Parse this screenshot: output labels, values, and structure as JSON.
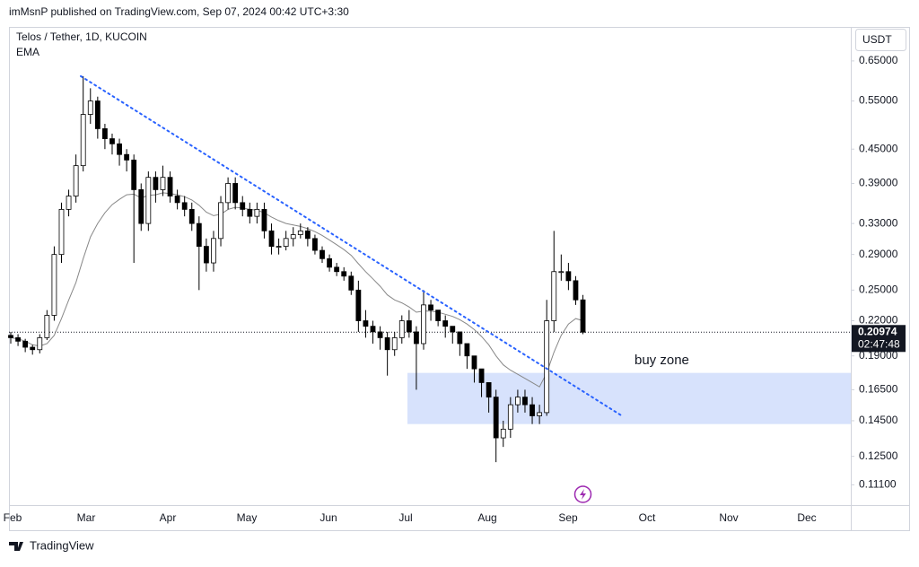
{
  "header": "imMsnP published on TradingView.com, Sep 07, 2024 00:42 UTC+3:30",
  "footer": "TradingView",
  "chart_data": {
    "type": "candlestick",
    "title": "Telos / Tether, 1D, KUCOIN",
    "currency": "USDT",
    "log_scale": true,
    "colors": {
      "up": "#ffffff",
      "down": "#000000",
      "wick": "#000000"
    },
    "open": [
      0.207,
      0.205,
      0.202,
      0.197,
      0.195,
      0.205,
      0.225,
      0.29,
      0.35,
      0.37,
      0.42,
      0.52,
      0.55,
      0.49,
      0.47,
      0.46,
      0.44,
      0.43,
      0.38,
      0.33,
      0.4,
      0.38,
      0.4,
      0.37,
      0.36,
      0.35,
      0.33,
      0.3,
      0.28,
      0.31,
      0.36,
      0.39,
      0.36,
      0.35,
      0.34,
      0.35,
      0.32,
      0.3,
      0.3,
      0.31,
      0.315,
      0.32,
      0.31,
      0.295,
      0.285,
      0.275,
      0.27,
      0.265,
      0.25,
      0.22,
      0.215,
      0.21,
      0.205,
      0.195,
      0.205,
      0.22,
      0.21,
      0.2,
      0.235,
      0.23,
      0.22,
      0.215,
      0.21,
      0.2,
      0.19,
      0.18,
      0.17,
      0.16,
      0.135,
      0.14,
      0.155,
      0.16,
      0.155,
      0.148,
      0.15,
      0.22,
      0.27,
      0.27,
      0.26,
      0.24
    ],
    "high": [
      0.21,
      0.208,
      0.204,
      0.199,
      0.208,
      0.23,
      0.3,
      0.36,
      0.38,
      0.44,
      0.61,
      0.58,
      0.56,
      0.5,
      0.48,
      0.47,
      0.45,
      0.44,
      0.39,
      0.41,
      0.41,
      0.42,
      0.41,
      0.38,
      0.37,
      0.36,
      0.34,
      0.31,
      0.32,
      0.37,
      0.4,
      0.4,
      0.37,
      0.36,
      0.36,
      0.36,
      0.33,
      0.31,
      0.32,
      0.325,
      0.33,
      0.325,
      0.315,
      0.3,
      0.29,
      0.28,
      0.275,
      0.27,
      0.26,
      0.23,
      0.22,
      0.215,
      0.21,
      0.21,
      0.225,
      0.23,
      0.215,
      0.25,
      0.24,
      0.23,
      0.225,
      0.215,
      0.21,
      0.2,
      0.19,
      0.18,
      0.17,
      0.165,
      0.145,
      0.16,
      0.165,
      0.165,
      0.16,
      0.155,
      0.24,
      0.32,
      0.29,
      0.28,
      0.265,
      0.245
    ],
    "low": [
      0.2,
      0.198,
      0.193,
      0.191,
      0.192,
      0.203,
      0.22,
      0.28,
      0.34,
      0.36,
      0.41,
      0.5,
      0.47,
      0.45,
      0.44,
      0.42,
      0.41,
      0.28,
      0.32,
      0.32,
      0.36,
      0.37,
      0.36,
      0.35,
      0.34,
      0.32,
      0.25,
      0.27,
      0.27,
      0.3,
      0.35,
      0.35,
      0.34,
      0.33,
      0.33,
      0.31,
      0.29,
      0.29,
      0.295,
      0.3,
      0.31,
      0.3,
      0.29,
      0.28,
      0.27,
      0.265,
      0.26,
      0.245,
      0.21,
      0.205,
      0.2,
      0.195,
      0.175,
      0.19,
      0.2,
      0.205,
      0.165,
      0.195,
      0.22,
      0.215,
      0.205,
      0.2,
      0.19,
      0.18,
      0.17,
      0.16,
      0.15,
      0.122,
      0.13,
      0.135,
      0.15,
      0.15,
      0.143,
      0.143,
      0.148,
      0.21,
      0.26,
      0.25,
      0.235,
      0.208
    ],
    "close": [
      0.205,
      0.202,
      0.197,
      0.195,
      0.205,
      0.225,
      0.29,
      0.35,
      0.37,
      0.42,
      0.52,
      0.55,
      0.49,
      0.47,
      0.46,
      0.44,
      0.43,
      0.38,
      0.33,
      0.4,
      0.38,
      0.4,
      0.37,
      0.36,
      0.35,
      0.33,
      0.3,
      0.28,
      0.31,
      0.36,
      0.39,
      0.36,
      0.35,
      0.34,
      0.35,
      0.32,
      0.3,
      0.3,
      0.31,
      0.315,
      0.32,
      0.31,
      0.295,
      0.285,
      0.275,
      0.27,
      0.265,
      0.25,
      0.22,
      0.215,
      0.21,
      0.205,
      0.195,
      0.205,
      0.22,
      0.21,
      0.2,
      0.235,
      0.23,
      0.22,
      0.215,
      0.21,
      0.2,
      0.19,
      0.18,
      0.17,
      0.16,
      0.135,
      0.14,
      0.155,
      0.16,
      0.155,
      0.148,
      0.15,
      0.22,
      0.27,
      0.27,
      0.26,
      0.24,
      0.20974
    ],
    "ema": {
      "name": "EMA",
      "color": "#888888",
      "values": [
        0.205,
        0.204,
        0.202,
        0.199,
        0.198,
        0.2,
        0.207,
        0.222,
        0.24,
        0.258,
        0.285,
        0.312,
        0.33,
        0.345,
        0.357,
        0.365,
        0.372,
        0.373,
        0.367,
        0.371,
        0.372,
        0.375,
        0.374,
        0.372,
        0.369,
        0.364,
        0.356,
        0.346,
        0.341,
        0.343,
        0.35,
        0.353,
        0.352,
        0.35,
        0.349,
        0.345,
        0.339,
        0.334,
        0.33,
        0.328,
        0.326,
        0.323,
        0.319,
        0.314,
        0.308,
        0.302,
        0.296,
        0.289,
        0.279,
        0.27,
        0.262,
        0.254,
        0.245,
        0.24,
        0.237,
        0.233,
        0.228,
        0.229,
        0.229,
        0.228,
        0.226,
        0.224,
        0.221,
        0.217,
        0.212,
        0.206,
        0.199,
        0.19,
        0.183,
        0.179,
        0.176,
        0.173,
        0.17,
        0.167,
        0.177,
        0.193,
        0.207,
        0.217,
        0.222,
        0.22
      ]
    },
    "ylim": [
      0.102,
      0.749
    ],
    "yticks": [
      {
        "value": 0.65,
        "label": "0.65000"
      },
      {
        "value": 0.55,
        "label": "0.55000"
      },
      {
        "value": 0.45,
        "label": "0.45000"
      },
      {
        "value": 0.39,
        "label": "0.39000"
      },
      {
        "value": 0.33,
        "label": "0.33000"
      },
      {
        "value": 0.29,
        "label": "0.29000"
      },
      {
        "value": 0.25,
        "label": "0.25000"
      },
      {
        "value": 0.22,
        "label": "0.22000"
      },
      {
        "value": 0.19,
        "label": "0.19000"
      },
      {
        "value": 0.165,
        "label": "0.16500"
      },
      {
        "value": 0.145,
        "label": "0.14500"
      },
      {
        "value": 0.125,
        "label": "0.12500"
      },
      {
        "value": 0.111,
        "label": "0.11100"
      }
    ],
    "xticks": [
      "Feb",
      "Mar",
      "Apr",
      "May",
      "Jun",
      "Jul",
      "Aug",
      "Sep",
      "Oct",
      "Nov",
      "Dec"
    ],
    "trendline": {
      "color": "#2962ff",
      "values": [
        0.61,
        0.148
      ]
    },
    "buy_zone": {
      "label": "buy zone",
      "color": "#d7e2fc",
      "values": [
        0.143,
        0.177
      ]
    },
    "last_price": 0.20974,
    "countdown": "02:47:48"
  }
}
